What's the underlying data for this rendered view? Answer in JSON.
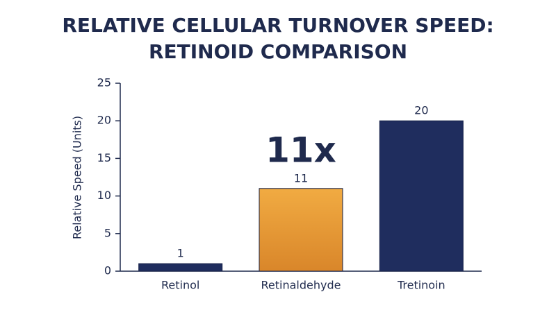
{
  "chart_data": {
    "type": "bar",
    "title": [
      "RELATIVE CELLULAR TURNOVER SPEED:",
      "RETINOID COMPARISON"
    ],
    "y_label": "Relative Speed (Units)",
    "annotation": "11x",
    "categories": [
      "Retinol",
      "Retinaldehyde",
      "Tretinoin"
    ],
    "values": [
      1,
      11,
      20
    ],
    "colors": [
      "#1f2d5e",
      "#e9a23b",
      "#1f2d5e"
    ],
    "ylim": [
      0,
      25
    ],
    "yticks": [
      0,
      5,
      10,
      15,
      20,
      25
    ],
    "grid": false
  }
}
